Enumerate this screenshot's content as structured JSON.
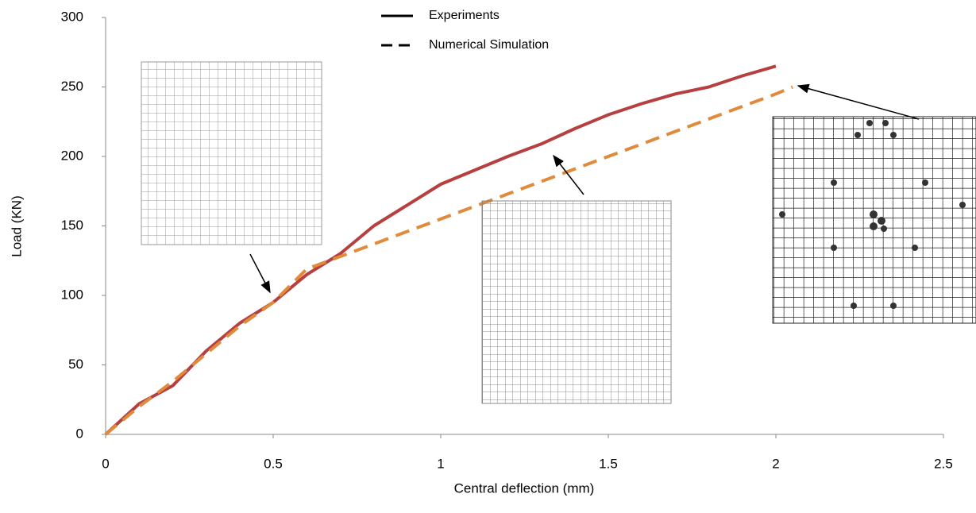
{
  "chart_data": {
    "type": "line",
    "xlabel": "Central deflection (mm)",
    "ylabel": "Load (KN)",
    "xlim": [
      0,
      2.5
    ],
    "xticks": [
      0,
      0.5,
      1,
      1.5,
      2,
      2.5
    ],
    "ylim": [
      0,
      300
    ],
    "yticks": [
      0,
      50,
      100,
      150,
      200,
      250,
      300
    ],
    "series": [
      {
        "name": "Experiments",
        "color": "#b5403f",
        "dash": false,
        "x": [
          0,
          0.1,
          0.2,
          0.3,
          0.4,
          0.5,
          0.6,
          0.7,
          0.8,
          0.9,
          1.0,
          1.1,
          1.2,
          1.3,
          1.4,
          1.5,
          1.6,
          1.7,
          1.8,
          1.9,
          2.0
        ],
        "values": [
          0,
          22,
          35,
          60,
          80,
          95,
          115,
          130,
          150,
          165,
          180,
          190,
          200,
          209,
          220,
          230,
          238,
          245,
          250,
          258,
          265
        ]
      },
      {
        "name": "Numerical Simulation",
        "color": "#e08a3c",
        "dash": true,
        "x": [
          0,
          0.1,
          0.2,
          0.3,
          0.4,
          0.5,
          0.6,
          0.7,
          0.8,
          0.9,
          1.0,
          1.1,
          1.2,
          1.3,
          1.4,
          1.5,
          1.6,
          1.7,
          1.8,
          1.9,
          2.0,
          2.05
        ],
        "values": [
          0,
          20,
          38,
          58,
          78,
          95,
          119,
          128,
          137,
          146,
          155,
          164,
          173,
          182,
          191,
          200,
          209,
          218,
          227,
          236,
          245,
          250
        ]
      }
    ]
  }
}
